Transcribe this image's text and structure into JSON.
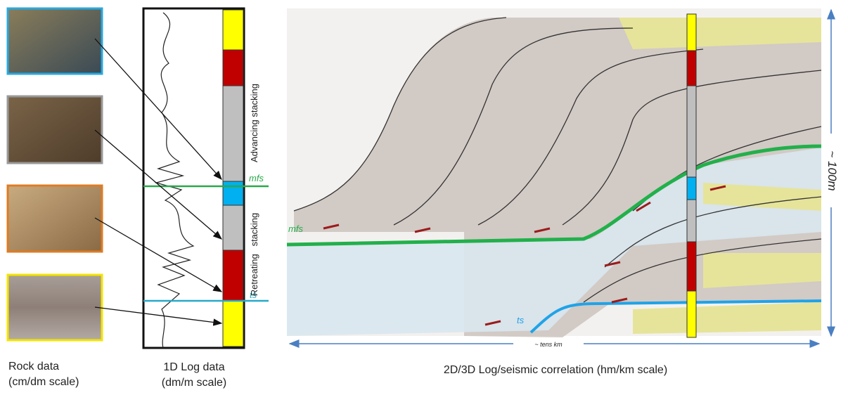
{
  "rock_data": {
    "title": "Rock data",
    "subtitle": "(cm/dm scale)"
  },
  "log_data": {
    "title": "1D Log data",
    "subtitle": "(dm/m scale)",
    "upper_label": "Advancing stacking",
    "lower_label": "Retreating   stacking",
    "mfs_label": "mfs",
    "ts_label": "ts"
  },
  "correlation": {
    "title": "2D/3D Log/seismic correlation (hm/km scale)",
    "mfs_label": "mfs",
    "ts_label": "ts",
    "width_label": "~ tens km",
    "height_label": "~ 100m"
  }
}
